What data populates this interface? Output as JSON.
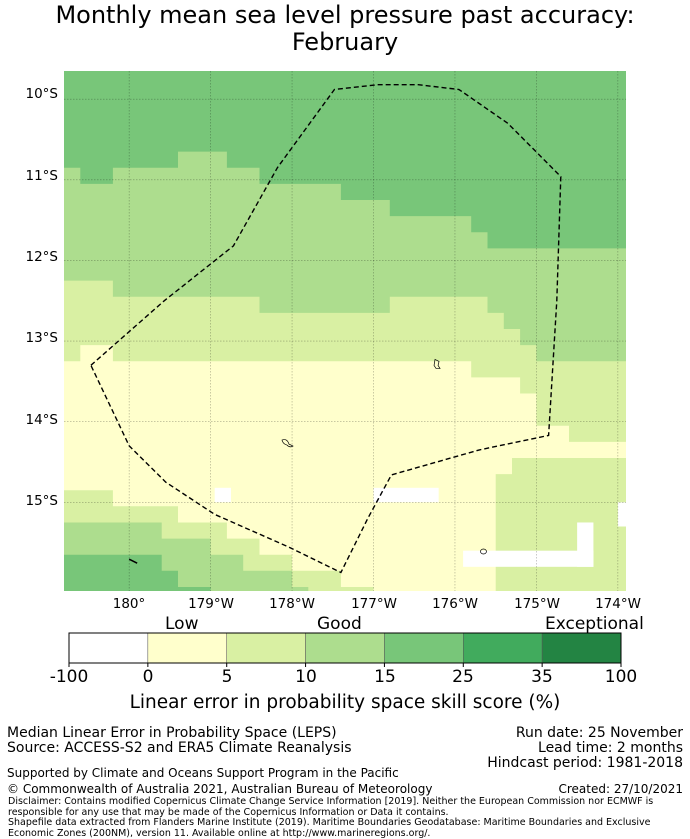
{
  "title": {
    "line1": "Monthly mean sea level pressure past accuracy:",
    "line2": "February"
  },
  "map": {
    "lat_labels": [
      "10°S",
      "11°S",
      "12°S",
      "13°S",
      "14°S",
      "15°S"
    ],
    "lon_labels": [
      "180°",
      "179°W",
      "178°W",
      "177°W",
      "176°W",
      "175°W",
      "174°W"
    ],
    "extent": {
      "lon_min": -180.8,
      "lon_max": -173.9,
      "lat_min": -16.1,
      "lat_max": -9.65
    },
    "boundary_lonlat": [
      [
        -180.47,
        -13.3
      ],
      [
        -179.57,
        -12.5
      ],
      [
        -178.72,
        -11.82
      ],
      [
        -178.18,
        -10.85
      ],
      [
        -177.48,
        -9.88
      ],
      [
        -176.95,
        -9.82
      ],
      [
        -176.45,
        -9.82
      ],
      [
        -175.95,
        -9.88
      ],
      [
        -175.35,
        -10.3
      ],
      [
        -174.7,
        -10.96
      ],
      [
        -174.75,
        -12.5
      ],
      [
        -174.85,
        -14.17
      ],
      [
        -175.7,
        -14.35
      ],
      [
        -176.78,
        -14.66
      ],
      [
        -177.07,
        -15.2
      ],
      [
        -177.4,
        -15.87
      ],
      [
        -178.05,
        -15.55
      ],
      [
        -178.95,
        -15.15
      ],
      [
        -179.55,
        -14.75
      ],
      [
        -180.0,
        -14.3
      ],
      [
        -180.47,
        -13.3
      ]
    ],
    "grid_step": 0.2,
    "bands": [
      {
        "name": "skill-25-35",
        "color": "#78c679",
        "lat_north": -9.65,
        "lat_south_by_lon": [
          [
            -180.8,
            -10.83
          ],
          [
            -180.5,
            -11.02
          ],
          [
            -179.5,
            -10.83
          ],
          [
            -179.1,
            -10.65
          ],
          [
            -178.7,
            -10.83
          ],
          [
            -178.3,
            -11.02
          ],
          [
            -177.7,
            -11.02
          ],
          [
            -177.3,
            -11.2
          ],
          [
            -176.7,
            -11.4
          ],
          [
            -176.1,
            -11.4
          ],
          [
            -175.5,
            -11.8
          ],
          [
            -174.5,
            -11.8
          ],
          [
            -173.9,
            -11.8
          ]
        ]
      },
      {
        "name": "skill-15-25",
        "color": "#addd8e",
        "lat_south_by_lon": [
          [
            -180.8,
            -12.22
          ],
          [
            -180.3,
            -12.22
          ],
          [
            -180.1,
            -12.42
          ],
          [
            -179.0,
            -12.42
          ],
          [
            -178.6,
            -12.42
          ],
          [
            -178.2,
            -12.6
          ],
          [
            -177.2,
            -12.6
          ],
          [
            -176.9,
            -12.6
          ],
          [
            -176.7,
            -12.45
          ],
          [
            -175.9,
            -12.45
          ],
          [
            -175.5,
            -12.62
          ],
          [
            -175.3,
            -12.82
          ],
          [
            -175.1,
            -13.0
          ],
          [
            -174.9,
            -13.2
          ],
          [
            -174.3,
            -13.2
          ],
          [
            -173.9,
            -13.2
          ]
        ]
      },
      {
        "name": "skill-10-15",
        "color": "#d9f0a3",
        "lat_south_by_lon": [
          [
            -180.8,
            -13.45
          ],
          [
            -180.5,
            -13.0
          ],
          [
            -180.1,
            -13.2
          ],
          [
            -179.0,
            -13.2
          ],
          [
            -178.0,
            -13.3
          ],
          [
            -177.0,
            -13.3
          ],
          [
            -176.0,
            -13.3
          ],
          [
            -175.5,
            -13.4
          ],
          [
            -175.0,
            -13.6
          ],
          [
            -174.9,
            -14.0
          ],
          [
            -174.5,
            -14.2
          ],
          [
            -174.1,
            -14.2
          ],
          [
            -173.9,
            -14.2
          ]
        ]
      },
      {
        "name": "skill-5-10",
        "color": "#ffffcc"
      },
      {
        "name": "skill-10-15-south",
        "color": "#d9f0a3",
        "lat_north_by_lon": [
          [
            -180.8,
            -14.8
          ],
          [
            -180.0,
            -15.0
          ],
          [
            -179.3,
            -15.2
          ],
          [
            -178.5,
            -15.5
          ],
          [
            -178.0,
            -15.8
          ],
          [
            -177.4,
            -15.95
          ],
          [
            -177.0,
            -16.1
          ]
        ]
      },
      {
        "name": "skill-15-25-south",
        "color": "#addd8e",
        "lat_north_by_lon": [
          [
            -180.8,
            -15.25
          ],
          [
            -180.0,
            -15.25
          ],
          [
            -179.3,
            -15.45
          ],
          [
            -178.8,
            -15.65
          ],
          [
            -178.3,
            -15.85
          ],
          [
            -178.0,
            -16.0
          ],
          [
            -177.8,
            -16.1
          ]
        ]
      },
      {
        "name": "skill-25-35-south",
        "color": "#78c679",
        "lat_north_by_lon": [
          [
            -180.8,
            -15.6
          ],
          [
            -180.0,
            -15.6
          ],
          [
            -179.5,
            -15.8
          ],
          [
            -179.3,
            -16.0
          ],
          [
            -179.0,
            -16.1
          ]
        ]
      },
      {
        "name": "skill-10-15-east",
        "color": "#d9f0a3",
        "lat_north_by_lon": [
          [
            -175.5,
            -14.6
          ],
          [
            -174.9,
            -14.4
          ],
          [
            -174.5,
            -14.4
          ],
          [
            -173.9,
            -14.4
          ]
        ]
      }
    ],
    "white_patches": [
      {
        "lon": -178.95,
        "lat": -14.82,
        "w": 0.2,
        "h": 0.18
      },
      {
        "lon": -177.0,
        "lat": -14.82,
        "w": 0.8,
        "h": 0.18
      },
      {
        "lon": -175.9,
        "lat": -15.6,
        "w": 1.6,
        "h": 0.2
      },
      {
        "lon": -174.5,
        "lat": -15.25,
        "w": 0.2,
        "h": 0.55
      },
      {
        "lon": -174.0,
        "lat": -15.0,
        "w": 0.1,
        "h": 0.3
      }
    ],
    "islands": [
      {
        "name": "rotuma-island",
        "lon": -176.22,
        "lat": -13.29
      },
      {
        "name": "wallis-island",
        "lon": -178.05,
        "lat": -14.29
      },
      {
        "name": "futuna-island",
        "lon": -175.65,
        "lat": -15.61
      },
      {
        "name": "fiji-island",
        "lon": -180.0,
        "lat": -15.73
      }
    ]
  },
  "colorbar": {
    "categories": [
      "Low",
      "Good",
      "Exceptional"
    ],
    "colors": [
      "#ffffff",
      "#ffffcc",
      "#d9f0a3",
      "#addd8e",
      "#78c679",
      "#41ab5d",
      "#238443"
    ],
    "ticks": [
      "-100",
      "0",
      "5",
      "10",
      "15",
      "25",
      "35",
      "100"
    ],
    "title": "Linear error in probability space skill score (%)"
  },
  "footer": {
    "metric": "Median Linear Error in Probability Space (LEPS)",
    "source": "Source: ACCESS-S2 and ERA5 Climate Reanalysis",
    "run_date": "Run date: 25 November",
    "lead_time": "Lead time: 2 months",
    "hindcast": "Hindcast period: 1981-2018",
    "support": "Supported by Climate and Oceans Support Program in the Pacific",
    "copyright": "© Commonwealth of Australia 2021, Australian Bureau of Meteorology",
    "created": "Created: 27/10/2021",
    "disclaimer": "Disclaimer: Contains modified Copernicus Climate Change Service Information [2019]. Neither the European Commission nor ECMWF is responsible for any use that may be made of the Copernicus Information or Data it contains.",
    "shapefile": "Shapefile data extracted from Flanders Marine Institute (2019). Maritime Boundaries Geodatabase: Maritime Boundaries and Exclusive Economic Zones (200NM), version 11. Available online at http://www.marineregions.org/."
  }
}
